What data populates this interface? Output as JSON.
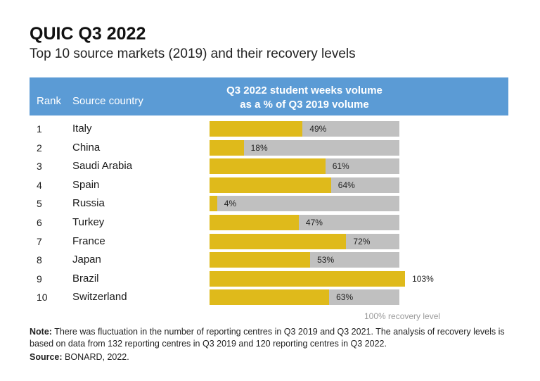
{
  "title": "QUIC Q3 2022",
  "subtitle": "Top 10 source markets (2019) and their recovery levels",
  "header": {
    "rank": "Rank",
    "country": "Source country",
    "metric_line1": "Q3 2022 student weeks volume",
    "metric_line2": "as a % of Q3 2019 volume"
  },
  "chart_data": {
    "type": "bar",
    "orientation": "horizontal",
    "categories": [
      "Italy",
      "China",
      "Saudi Arabia",
      "Spain",
      "Russia",
      "Turkey",
      "France",
      "Japan",
      "Brazil",
      "Switzerland"
    ],
    "ranks": [
      "1",
      "2",
      "3",
      "4",
      "5",
      "6",
      "7",
      "8",
      "9",
      "10"
    ],
    "values": [
      49,
      18,
      61,
      64,
      4,
      47,
      72,
      53,
      103,
      63
    ],
    "value_labels": [
      "49%",
      "18%",
      "61%",
      "64%",
      "4%",
      "47%",
      "72%",
      "53%",
      "103%",
      "63%"
    ],
    "reference": 100,
    "reference_label": "100% recovery level",
    "colors": {
      "fill": "#dfba1b",
      "track": "#c0c0c0",
      "header": "#5b9bd5"
    }
  },
  "note": {
    "label": "Note:",
    "text": "There was fluctuation in the number of reporting centres in Q3 2019 and Q3 2021. The analysis of recovery levels is based on data from 132 reporting centres in Q3 2019 and 120 reporting centres in Q3 2022."
  },
  "source": {
    "label": "Source:",
    "text": "BONARD, 2022."
  }
}
